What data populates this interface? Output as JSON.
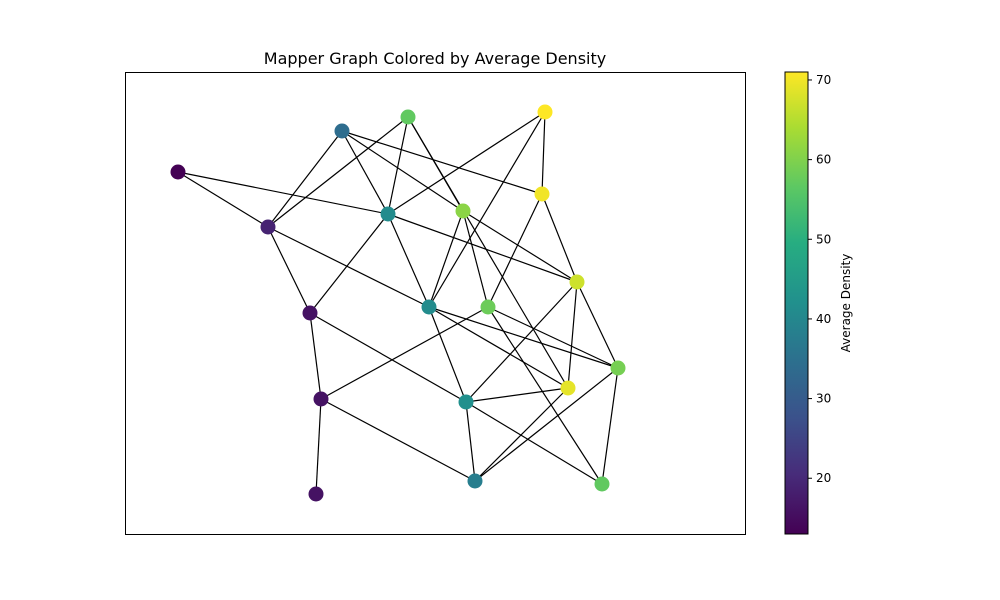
{
  "chart_data": {
    "type": "network",
    "title": "Mapper Graph Colored by Average Density",
    "colorbar": {
      "label": "Average Density",
      "colormap": "viridis",
      "range": [
        13,
        71
      ],
      "ticks": [
        20,
        30,
        40,
        50,
        60,
        70
      ]
    },
    "axes": {
      "visible": false,
      "grid": false
    },
    "nodes": [
      {
        "id": 0,
        "value": 13
      },
      {
        "id": 1,
        "value": 19
      },
      {
        "id": 2,
        "value": 34
      },
      {
        "id": 3,
        "value": 57
      },
      {
        "id": 4,
        "value": 71
      },
      {
        "id": 5,
        "value": 41
      },
      {
        "id": 6,
        "value": 61
      },
      {
        "id": 7,
        "value": 70
      },
      {
        "id": 8,
        "value": 16
      },
      {
        "id": 9,
        "value": 41
      },
      {
        "id": 10,
        "value": 58
      },
      {
        "id": 11,
        "value": 67
      },
      {
        "id": 12,
        "value": 59
      },
      {
        "id": 13,
        "value": 16
      },
      {
        "id": 14,
        "value": 42
      },
      {
        "id": 15,
        "value": 69
      },
      {
        "id": 16,
        "value": 16
      },
      {
        "id": 17,
        "value": 38
      },
      {
        "id": 18,
        "value": 57
      }
    ],
    "edges": [
      [
        0,
        1
      ],
      [
        0,
        5
      ],
      [
        1,
        3
      ],
      [
        1,
        8
      ],
      [
        1,
        9
      ],
      [
        2,
        1
      ],
      [
        2,
        5
      ],
      [
        2,
        6
      ],
      [
        2,
        7
      ],
      [
        3,
        5
      ],
      [
        3,
        6
      ],
      [
        3,
        15
      ],
      [
        4,
        5
      ],
      [
        4,
        7
      ],
      [
        4,
        9
      ],
      [
        5,
        8
      ],
      [
        5,
        9
      ],
      [
        5,
        11
      ],
      [
        6,
        9
      ],
      [
        6,
        10
      ],
      [
        6,
        11
      ],
      [
        7,
        10
      ],
      [
        7,
        11
      ],
      [
        8,
        13
      ],
      [
        8,
        14
      ],
      [
        9,
        14
      ],
      [
        9,
        15
      ],
      [
        9,
        12
      ],
      [
        10,
        12
      ],
      [
        10,
        13
      ],
      [
        10,
        18
      ],
      [
        11,
        14
      ],
      [
        11,
        12
      ],
      [
        11,
        15
      ],
      [
        12,
        17
      ],
      [
        12,
        18
      ],
      [
        13,
        17
      ],
      [
        13,
        16
      ],
      [
        14,
        17
      ],
      [
        14,
        18
      ],
      [
        14,
        15
      ],
      [
        15,
        17
      ]
    ]
  }
}
